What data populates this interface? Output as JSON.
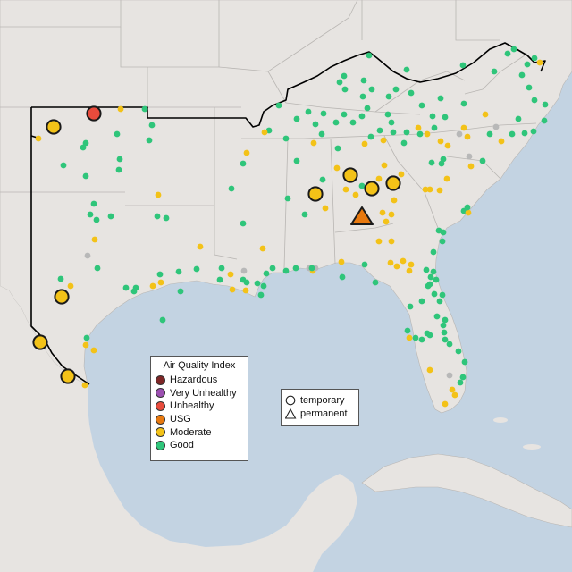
{
  "map": {
    "colors": {
      "land": "#e7e4e1",
      "water": "#c3d3e2",
      "state_line": "#b9b6b3",
      "region_outline": "#000000",
      "marker_stroke": "#1a1a1a"
    },
    "aqi_categories": [
      {
        "key": "hazardous",
        "label": "Hazardous",
        "color": "#7e2626"
      },
      {
        "key": "very_unhealthy",
        "label": "Very Unhealthy",
        "color": "#9b4fb0"
      },
      {
        "key": "unhealthy",
        "label": "Unhealthy",
        "color": "#e84b3c"
      },
      {
        "key": "usg",
        "label": "USG",
        "color": "#e8790f"
      },
      {
        "key": "moderate",
        "label": "Moderate",
        "color": "#f3c218"
      },
      {
        "key": "good",
        "label": "Good",
        "color": "#2fc57a"
      }
    ],
    "unknown_color": "#b8b8b8",
    "monitor_types": [
      {
        "key": "temporary",
        "label": "temporary",
        "icon": "circle-icon"
      },
      {
        "key": "permanent",
        "label": "permanent",
        "icon": "triangle-icon"
      }
    ]
  },
  "legend": {
    "title": "Air Quality Index",
    "items": [
      "Hazardous",
      "Very Unhealthy",
      "Unhealthy",
      "USG",
      "Moderate",
      "Good"
    ],
    "type_items": [
      "temporary",
      "permanent"
    ]
  }
}
